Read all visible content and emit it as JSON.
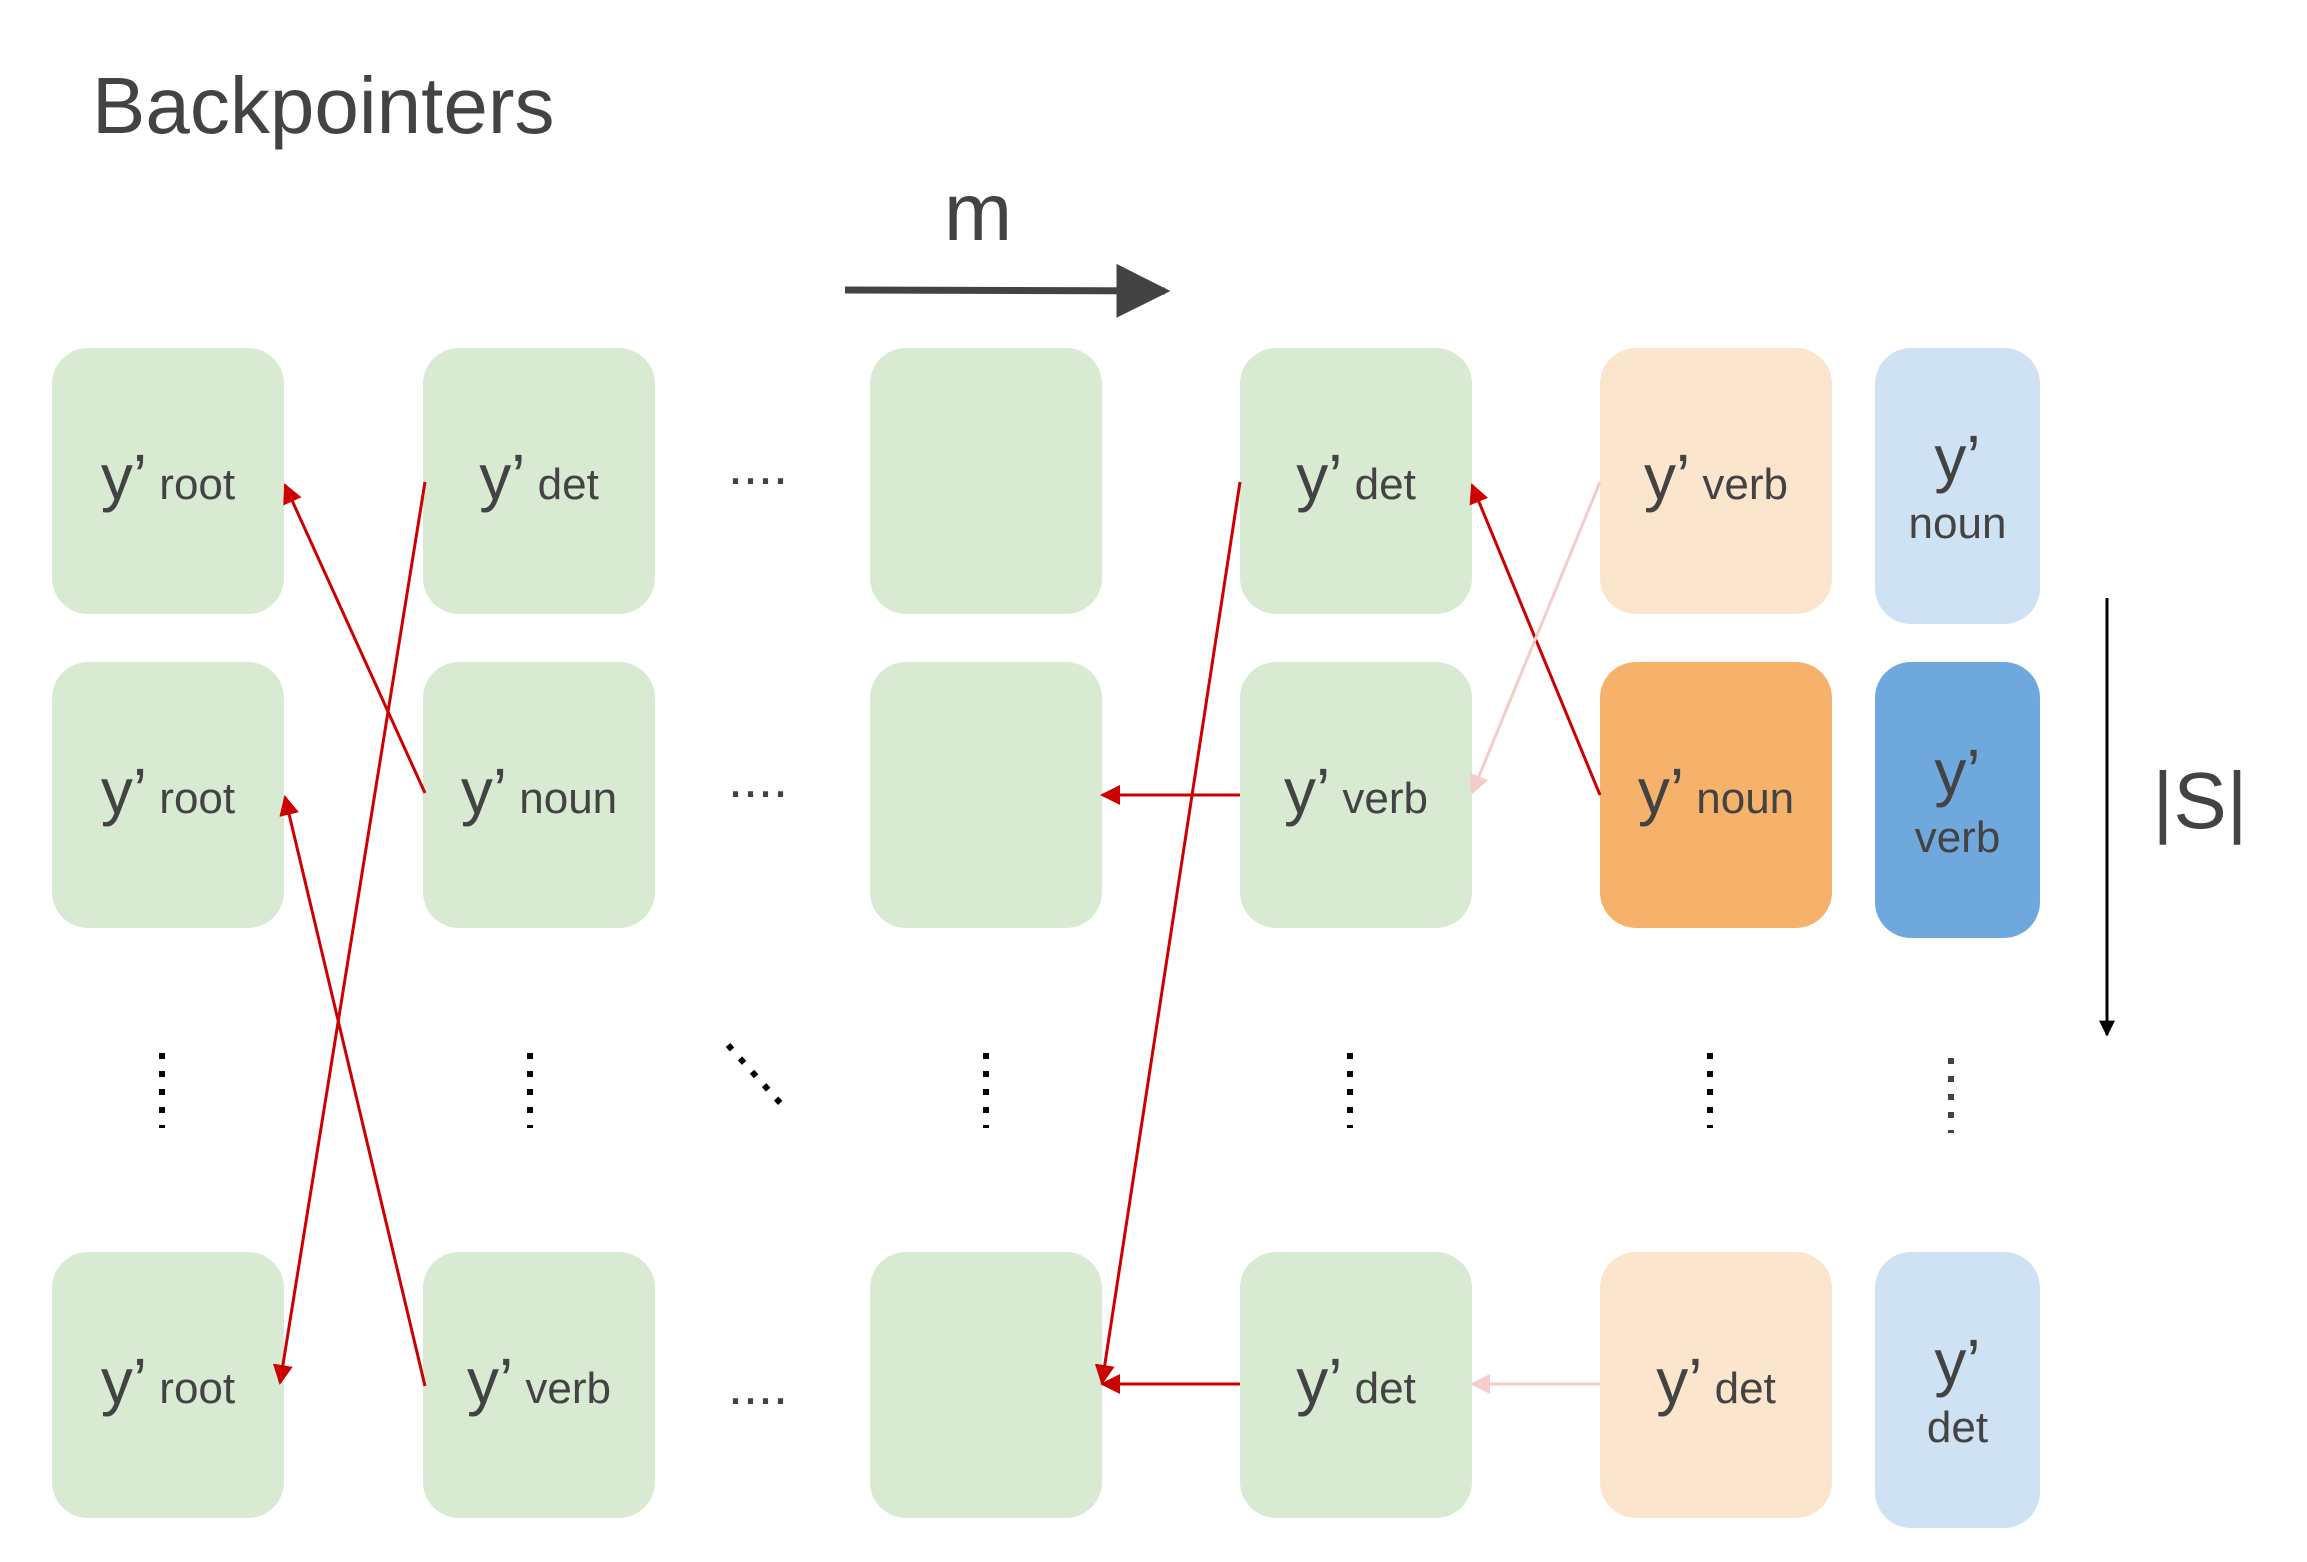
{
  "title": "Backpointers",
  "axis_m": "m",
  "axis_s": "|S|",
  "ellipsis_h": "....",
  "colors": {
    "green": "#d9ead3",
    "peach": "#fce5cd",
    "orange": "#f6b26b",
    "light_blue": "#cfe2f3",
    "blue": "#6fa8dc",
    "red_arrow": "#cc0000",
    "faint_arrow": "#f4cccc",
    "text": "#434343"
  },
  "columns": [
    {
      "id": "col1",
      "cells": [
        {
          "prime": "y’",
          "tag": "root"
        },
        {
          "prime": "y’",
          "tag": "root"
        },
        {
          "prime": "y’",
          "tag": "root"
        }
      ]
    },
    {
      "id": "col2",
      "cells": [
        {
          "prime": "y’",
          "tag": "det"
        },
        {
          "prime": "y’",
          "tag": "noun"
        },
        {
          "prime": "y’",
          "tag": "verb"
        }
      ]
    },
    {
      "id": "col3",
      "cells": [
        {
          "prime": "",
          "tag": ""
        },
        {
          "prime": "",
          "tag": ""
        },
        {
          "prime": "",
          "tag": ""
        }
      ]
    },
    {
      "id": "col4",
      "cells": [
        {
          "prime": "y’",
          "tag": "det"
        },
        {
          "prime": "y’",
          "tag": "verb"
        },
        {
          "prime": "y’",
          "tag": "det"
        }
      ]
    },
    {
      "id": "col5",
      "cells": [
        {
          "prime": "y’",
          "tag": "verb"
        },
        {
          "prime": "y’",
          "tag": "noun"
        },
        {
          "prime": "y’",
          "tag": "det"
        }
      ]
    },
    {
      "id": "col6",
      "cells": [
        {
          "prime": "y’",
          "tag": "noun"
        },
        {
          "prime": "y’",
          "tag": "verb"
        },
        {
          "prime": "y’",
          "tag": "det"
        }
      ]
    }
  ]
}
